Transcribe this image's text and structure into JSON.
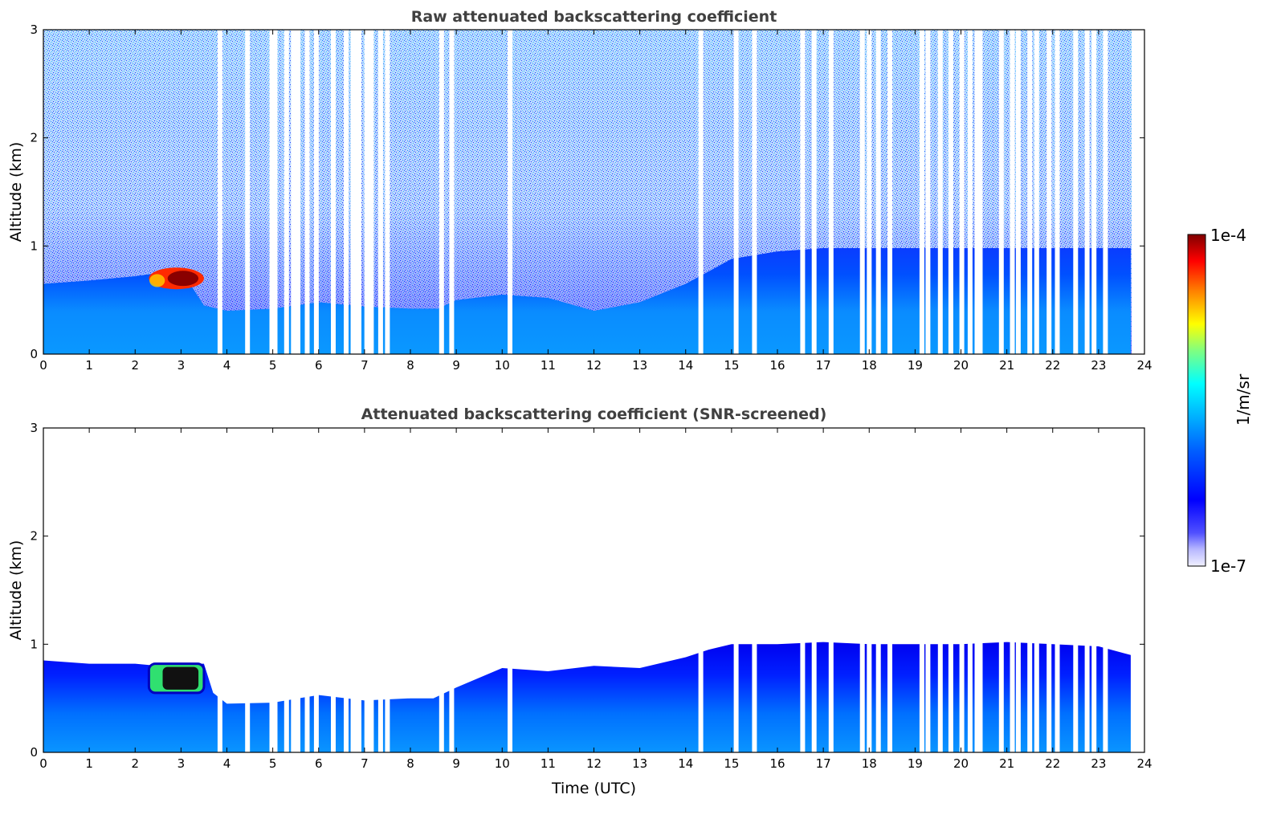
{
  "chart_data": [
    {
      "type": "heatmap",
      "title": "Raw attenuated backscattering coefficient",
      "xlabel": "",
      "ylabel": "Altitude (km)",
      "xlim": [
        0,
        24
      ],
      "ylim": [
        0,
        3
      ],
      "x_ticks": [
        "0",
        "1",
        "2",
        "3",
        "4",
        "5",
        "6",
        "7",
        "8",
        "9",
        "10",
        "11",
        "12",
        "13",
        "14",
        "15",
        "16",
        "17",
        "18",
        "19",
        "20",
        "21",
        "22",
        "23",
        "24"
      ],
      "y_ticks": [
        "0",
        "1",
        "2",
        "3"
      ],
      "boundary_layer_top_km": {
        "time": [
          0,
          1,
          2,
          2.5,
          3,
          3.5,
          4,
          5,
          6,
          7,
          8,
          8.6,
          9,
          10,
          11,
          12,
          13,
          14,
          15,
          16,
          17,
          18,
          19,
          20,
          21,
          22,
          23,
          23.7
        ],
        "altitude": [
          0.65,
          0.68,
          0.72,
          0.75,
          0.78,
          0.45,
          0.4,
          0.42,
          0.48,
          0.44,
          0.42,
          0.42,
          0.5,
          0.55,
          0.52,
          0.4,
          0.48,
          0.65,
          0.88,
          0.95,
          0.98,
          0.98,
          0.98,
          0.98,
          0.98,
          0.98,
          0.98,
          0.98
        ]
      },
      "cloud_feature": {
        "time_start": 2.3,
        "time_end": 3.5,
        "altitude_bottom": 0.6,
        "altitude_top": 0.8,
        "level": "1e-4"
      },
      "missing_data_times": [
        3.85,
        4.45,
        4.98,
        5.05,
        5.3,
        5.45,
        5.55,
        5.75,
        5.95,
        6.32,
        6.6,
        6.75,
        6.82,
        6.88,
        7.05,
        7.15,
        7.35,
        7.5,
        8.68,
        8.9,
        10.17,
        14.33,
        15.1,
        15.5,
        16.55,
        16.8,
        17.17,
        17.85,
        18.0,
        18.2,
        18.45,
        19.15,
        19.28,
        19.55,
        19.78,
        20.02,
        20.2,
        20.35,
        20.42,
        20.88,
        21.12,
        21.25,
        21.5,
        21.65,
        21.92,
        22.1,
        22.5,
        22.75,
        22.9,
        23.15
      ]
    },
    {
      "type": "heatmap",
      "title": "Attenuated backscattering coefficient (SNR-screened)",
      "xlabel": "Time (UTC)",
      "ylabel": "Altitude (km)",
      "xlim": [
        0,
        24
      ],
      "ylim": [
        0,
        3
      ],
      "x_ticks": [
        "0",
        "1",
        "2",
        "3",
        "4",
        "5",
        "6",
        "7",
        "8",
        "9",
        "10",
        "11",
        "12",
        "13",
        "14",
        "15",
        "16",
        "17",
        "18",
        "19",
        "20",
        "21",
        "22",
        "23",
        "24"
      ],
      "y_ticks": [
        "0",
        "1",
        "2",
        "3"
      ],
      "signal_top_km": {
        "time": [
          0,
          1,
          2,
          2.5,
          3,
          3.5,
          3.7,
          4,
          5,
          6,
          7,
          8,
          8.5,
          9,
          10,
          11,
          12,
          13,
          14,
          14.5,
          15,
          16,
          17,
          18,
          19,
          20,
          21,
          22,
          23,
          23.7
        ],
        "altitude": [
          0.85,
          0.82,
          0.82,
          0.8,
          0.82,
          0.82,
          0.55,
          0.45,
          0.46,
          0.53,
          0.48,
          0.5,
          0.5,
          0.6,
          0.78,
          0.75,
          0.8,
          0.78,
          0.88,
          0.95,
          1.0,
          1.0,
          1.02,
          1.0,
          1.0,
          1.0,
          1.02,
          1.0,
          0.98,
          0.9
        ]
      },
      "cloud_feature": {
        "time_start": 2.3,
        "time_end": 3.5,
        "altitude_bottom": 0.55,
        "altitude_top": 0.82,
        "level": "1e-4"
      },
      "missing_data_times": [
        3.85,
        4.45,
        4.98,
        5.05,
        5.3,
        5.45,
        5.55,
        5.75,
        5.95,
        6.32,
        6.6,
        6.75,
        6.82,
        6.88,
        7.05,
        7.15,
        7.35,
        7.5,
        8.68,
        8.9,
        10.17,
        14.33,
        15.1,
        15.5,
        16.55,
        16.8,
        17.17,
        17.85,
        18.0,
        18.2,
        18.45,
        19.15,
        19.28,
        19.55,
        19.78,
        20.02,
        20.2,
        20.35,
        20.42,
        20.88,
        21.12,
        21.25,
        21.5,
        21.65,
        21.92,
        22.1,
        22.5,
        22.75,
        22.9,
        23.15
      ]
    }
  ],
  "colorbar": {
    "min_label": "1e-7",
    "max_label": "1e-4",
    "unit_label": "1/m/sr",
    "colormap": "jet",
    "scale": "log",
    "colors": [
      "#f0f0ff",
      "#b0b0ff",
      "#0000ff",
      "#0080ff",
      "#00ffff",
      "#80ff80",
      "#ffff00",
      "#ff8000",
      "#ff0000",
      "#800000"
    ]
  }
}
